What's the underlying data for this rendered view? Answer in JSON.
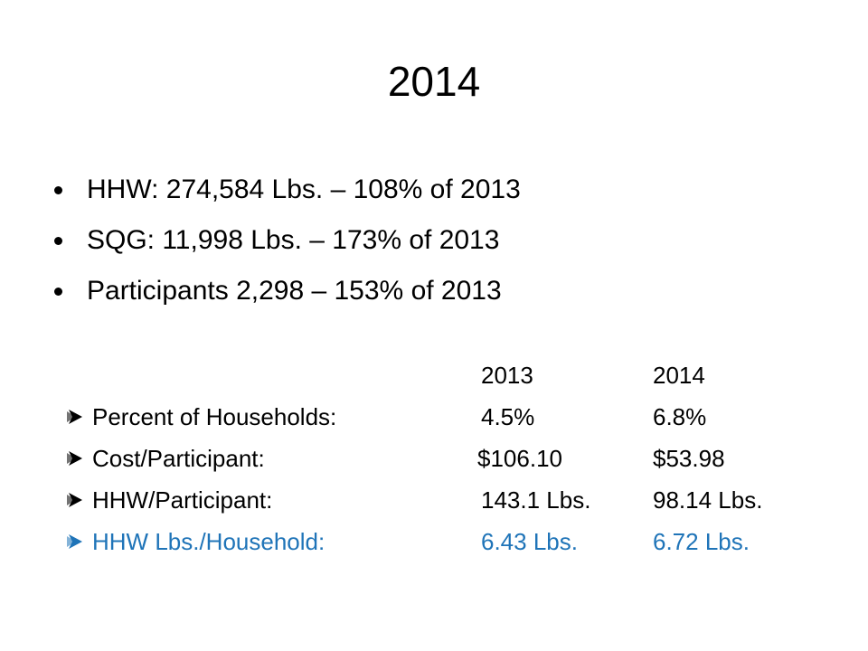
{
  "slide": {
    "title": "2014",
    "bullets": [
      "HHW:  274,584 Lbs. – 108% of 2013",
      "SQG:  11,998 Lbs. – 173% of 2013",
      "Participants 2,298 – 153% of 2013"
    ],
    "stats": {
      "header": {
        "col2013": "2013",
        "col2014": "2014"
      },
      "rows": [
        {
          "label": "Percent of Households:",
          "v2013": "4.5%",
          "v2014": "6.8%",
          "icon": "arrow-bullet-icon"
        },
        {
          "label": "Cost/Participant:",
          "v2013": "$106.10",
          "v2014": "$53.98",
          "icon": "arrow-bullet-icon"
        },
        {
          "label": "HHW/Participant:",
          "v2013": "143.1 Lbs.",
          "v2014": "98.14 Lbs.",
          "icon": "arrow-bullet-icon"
        },
        {
          "label": "HHW Lbs./Household:",
          "v2013": "6.43 Lbs.",
          "v2014": "6.72 Lbs.",
          "icon": "arrow-bullet-icon",
          "color": "#1f74b8"
        }
      ]
    }
  }
}
